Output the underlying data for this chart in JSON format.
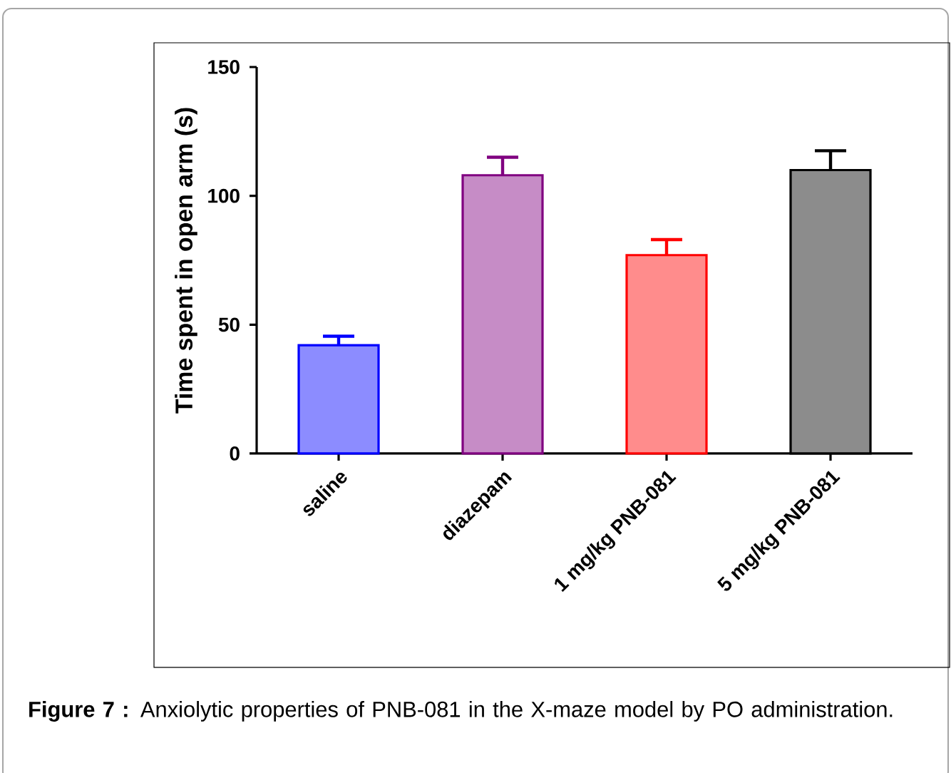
{
  "chart_data": {
    "type": "bar",
    "ylabel": "Time spent in open arm (s)",
    "categories": [
      "saline",
      "diazepam",
      "1 mg/kg PNB-081",
      "5 mg/kg PNB-081"
    ],
    "values": [
      42,
      108,
      77,
      110
    ],
    "errors": [
      3.5,
      7,
      6,
      7.5
    ],
    "colors": [
      "#0000ff",
      "#800080",
      "#ff0000",
      "#000000"
    ],
    "ylim": [
      0,
      150
    ],
    "yticks": [
      0,
      50,
      100,
      150
    ],
    "grid": false,
    "annotations": [
      "**Figure 7 :** Anxiolytic properties of PNB-081 in the X-maze model by PO administration."
    ]
  }
}
